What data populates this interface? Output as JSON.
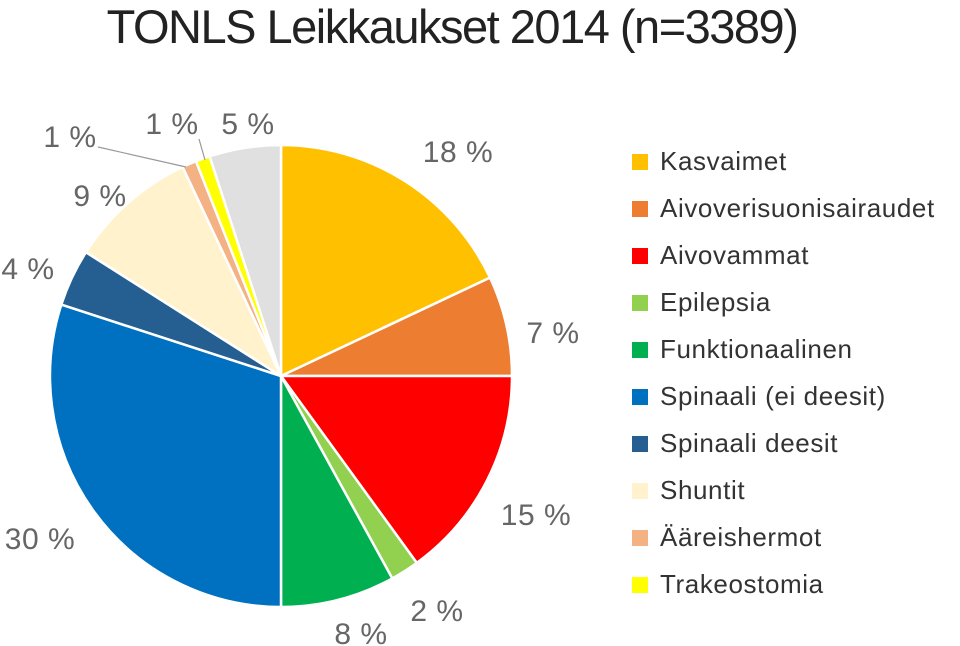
{
  "chart_data": {
    "type": "pie",
    "title": "TONLS Leikkaukset 2014 (n=3389)",
    "slices": [
      {
        "name": "Kasvaimet",
        "value": 18,
        "label": "18 %",
        "color": "#FFC000"
      },
      {
        "name": "Aivoverisuonisairaudet",
        "value": 7,
        "label": "7 %",
        "color": "#ED7D31"
      },
      {
        "name": "Aivovammat",
        "value": 15,
        "label": "15 %",
        "color": "#FF0000"
      },
      {
        "name": "Epilepsia",
        "value": 2,
        "label": "2 %",
        "color": "#92D050"
      },
      {
        "name": "Funktionaalinen",
        "value": 8,
        "label": "8 %",
        "color": "#00B050"
      },
      {
        "name": "Spinaali (ei deesit)",
        "value": 30,
        "label": "30 %",
        "color": "#0070C0"
      },
      {
        "name": "Spinaali deesit",
        "value": 4,
        "label": "4 %",
        "color": "#255E91"
      },
      {
        "name": "Shuntit",
        "value": 9,
        "label": "9 %",
        "color": "#FFF2CC"
      },
      {
        "name": "Ääreishermot",
        "value": 1,
        "label": "1 %",
        "color": "#F4B183"
      },
      {
        "name": "Trakeostomia",
        "value": 1,
        "label": "1 %",
        "color": "#FFFF00"
      },
      {
        "name": "",
        "value": 5,
        "label": "5 %",
        "color": "#E0E0E0"
      }
    ],
    "legend_position": "right"
  }
}
